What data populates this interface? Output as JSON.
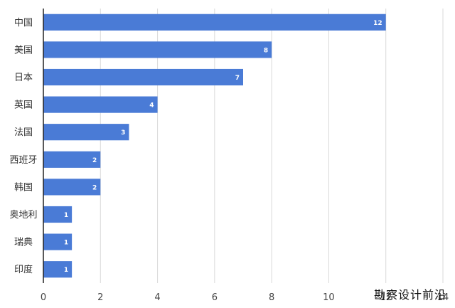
{
  "chart_data": {
    "type": "bar",
    "orientation": "horizontal",
    "categories": [
      "中国",
      "美国",
      "日本",
      "英国",
      "法国",
      "西班牙",
      "韩国",
      "奥地利",
      "瑞典",
      "印度"
    ],
    "values": [
      12,
      8,
      7,
      4,
      3,
      2,
      2,
      1,
      1,
      1
    ],
    "title": "",
    "xlabel": "",
    "ylabel": "",
    "xlim": [
      0,
      14
    ],
    "xticks": [
      0,
      2,
      4,
      6,
      8,
      10,
      12,
      14
    ],
    "grid": "vertical",
    "data_labels": true,
    "bar_color": "#4a7bd6",
    "grid_color": "#d9d9d9",
    "axis_color": "#222222"
  },
  "watermark": "勘察设计前沿"
}
